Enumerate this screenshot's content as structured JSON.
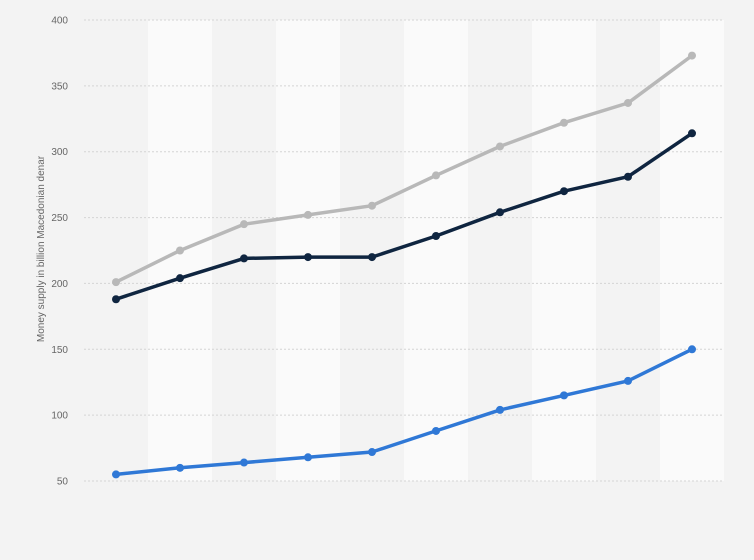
{
  "chart_data": {
    "type": "line",
    "ylabel": "Money supply in billion Macedonian denar",
    "xlabel": "",
    "ylim": [
      50,
      400
    ],
    "yticks": [
      50,
      100,
      150,
      200,
      250,
      300,
      350,
      400
    ],
    "grid": true,
    "legend": "none",
    "categories": [
      "",
      "",
      "",
      "",
      "",
      "",
      "",
      "",
      "",
      ""
    ],
    "series": [
      {
        "color": "#b8b8b8",
        "values": [
          201,
          225,
          245,
          252,
          259,
          282,
          304,
          322,
          337,
          373
        ]
      },
      {
        "color": "#0f2540",
        "values": [
          188,
          204,
          219,
          220,
          220,
          236,
          254,
          270,
          281,
          314
        ]
      },
      {
        "color": "#2f78d6",
        "values": [
          55,
          60,
          64,
          68,
          72,
          88,
          104,
          115,
          126,
          150
        ]
      }
    ]
  }
}
